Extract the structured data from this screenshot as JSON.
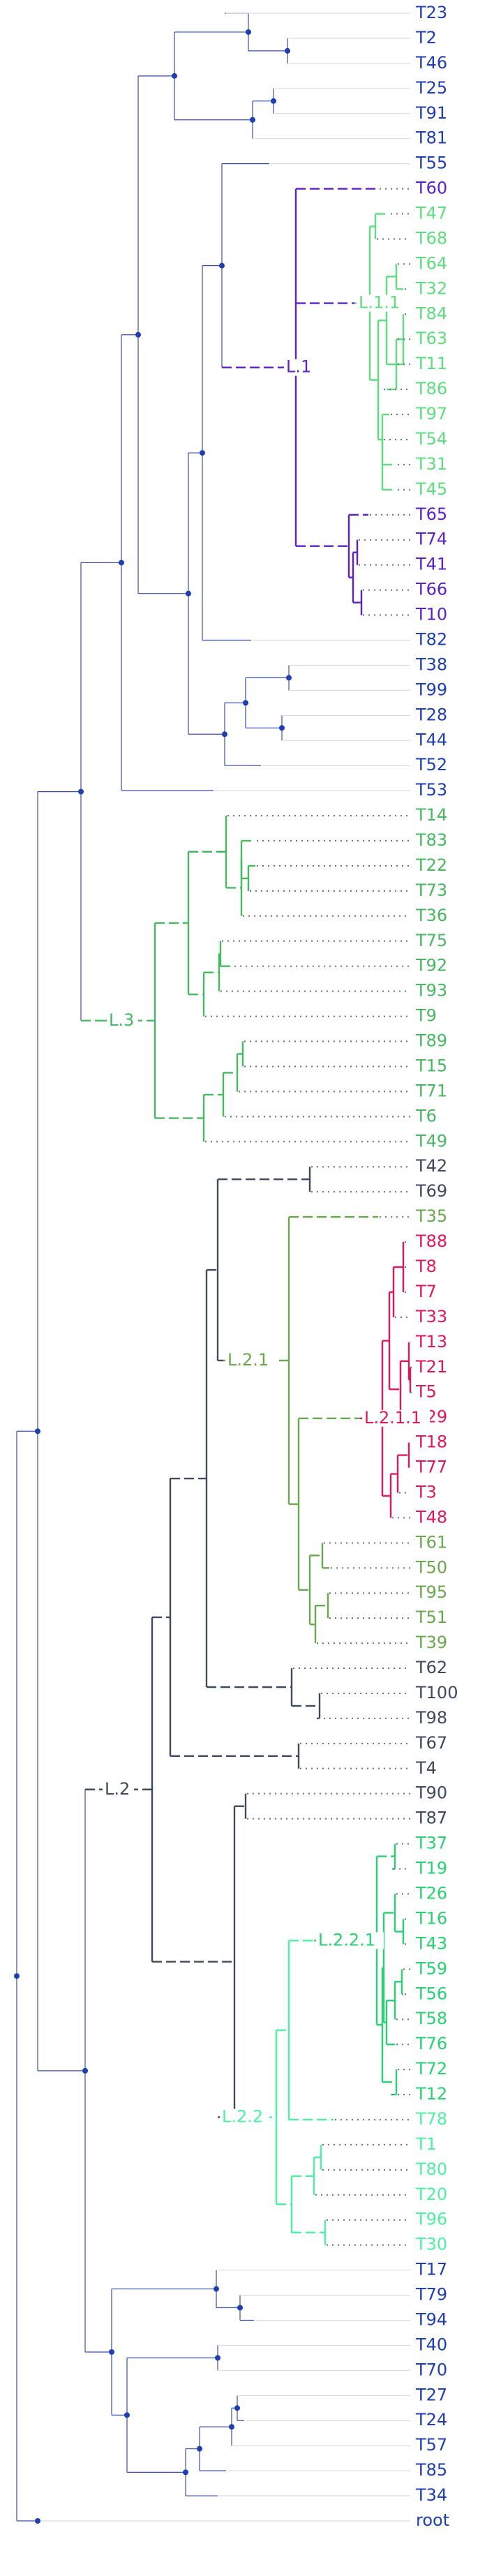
{
  "colors": {
    "default": "#3a4da8",
    "node": "#1f3fb0",
    "label_default": "#1f3fb0",
    "L.1": "#5a22c8",
    "L.1.1": "#5edd7e",
    "L.3": "#47b860",
    "L.2": "#3f4a5c",
    "L.2.1": "#6aa84f",
    "L.2.1.1": "#e0175a",
    "L.2.2": "#4ef0a0",
    "L.2.2.1": "#28d070"
  },
  "tree": {
    "leaves": [
      {
        "name": "T23",
        "group": "default"
      },
      {
        "name": "T2",
        "group": "default"
      },
      {
        "name": "T46",
        "group": "default"
      },
      {
        "name": "T25",
        "group": "default"
      },
      {
        "name": "T91",
        "group": "default"
      },
      {
        "name": "T81",
        "group": "default"
      },
      {
        "name": "T55",
        "group": "default"
      },
      {
        "name": "T60",
        "group": "L.1"
      },
      {
        "name": "T47",
        "group": "L.1.1"
      },
      {
        "name": "T68",
        "group": "L.1.1"
      },
      {
        "name": "T64",
        "group": "L.1.1"
      },
      {
        "name": "T32",
        "group": "L.1.1"
      },
      {
        "name": "T84",
        "group": "L.1.1"
      },
      {
        "name": "T63",
        "group": "L.1.1"
      },
      {
        "name": "T11",
        "group": "L.1.1"
      },
      {
        "name": "T86",
        "group": "L.1.1"
      },
      {
        "name": "T97",
        "group": "L.1.1"
      },
      {
        "name": "T54",
        "group": "L.1.1"
      },
      {
        "name": "T31",
        "group": "L.1.1"
      },
      {
        "name": "T45",
        "group": "L.1.1"
      },
      {
        "name": "T65",
        "group": "L.1"
      },
      {
        "name": "T74",
        "group": "L.1"
      },
      {
        "name": "T41",
        "group": "L.1"
      },
      {
        "name": "T66",
        "group": "L.1"
      },
      {
        "name": "T10",
        "group": "L.1"
      },
      {
        "name": "T82",
        "group": "default"
      },
      {
        "name": "T38",
        "group": "default"
      },
      {
        "name": "T99",
        "group": "default"
      },
      {
        "name": "T28",
        "group": "default"
      },
      {
        "name": "T44",
        "group": "default"
      },
      {
        "name": "T52",
        "group": "default"
      },
      {
        "name": "T53",
        "group": "default"
      },
      {
        "name": "T14",
        "group": "L.3"
      },
      {
        "name": "T83",
        "group": "L.3"
      },
      {
        "name": "T22",
        "group": "L.3"
      },
      {
        "name": "T73",
        "group": "L.3"
      },
      {
        "name": "T36",
        "group": "L.3"
      },
      {
        "name": "T75",
        "group": "L.3"
      },
      {
        "name": "T92",
        "group": "L.3"
      },
      {
        "name": "T93",
        "group": "L.3"
      },
      {
        "name": "T9",
        "group": "L.3"
      },
      {
        "name": "T89",
        "group": "L.3"
      },
      {
        "name": "T15",
        "group": "L.3"
      },
      {
        "name": "T71",
        "group": "L.3"
      },
      {
        "name": "T6",
        "group": "L.3"
      },
      {
        "name": "T49",
        "group": "L.3"
      },
      {
        "name": "T42",
        "group": "L.2"
      },
      {
        "name": "T69",
        "group": "L.2"
      },
      {
        "name": "T35",
        "group": "L.2.1"
      },
      {
        "name": "T88",
        "group": "L.2.1.1"
      },
      {
        "name": "T8",
        "group": "L.2.1.1"
      },
      {
        "name": "T7",
        "group": "L.2.1.1"
      },
      {
        "name": "T33",
        "group": "L.2.1.1"
      },
      {
        "name": "T13",
        "group": "L.2.1.1"
      },
      {
        "name": "T21",
        "group": "L.2.1.1"
      },
      {
        "name": "T5",
        "group": "L.2.1.1"
      },
      {
        "name": "T29",
        "group": "L.2.1.1"
      },
      {
        "name": "T18",
        "group": "L.2.1.1"
      },
      {
        "name": "T77",
        "group": "L.2.1.1"
      },
      {
        "name": "T3",
        "group": "L.2.1.1"
      },
      {
        "name": "T48",
        "group": "L.2.1.1"
      },
      {
        "name": "T61",
        "group": "L.2.1"
      },
      {
        "name": "T50",
        "group": "L.2.1"
      },
      {
        "name": "T95",
        "group": "L.2.1"
      },
      {
        "name": "T51",
        "group": "L.2.1"
      },
      {
        "name": "T39",
        "group": "L.2.1"
      },
      {
        "name": "T62",
        "group": "L.2"
      },
      {
        "name": "T100",
        "group": "L.2"
      },
      {
        "name": "T98",
        "group": "L.2"
      },
      {
        "name": "T67",
        "group": "L.2"
      },
      {
        "name": "T4",
        "group": "L.2"
      },
      {
        "name": "T90",
        "group": "L.2"
      },
      {
        "name": "T87",
        "group": "L.2"
      },
      {
        "name": "T37",
        "group": "L.2.2.1"
      },
      {
        "name": "T19",
        "group": "L.2.2.1"
      },
      {
        "name": "T26",
        "group": "L.2.2.1"
      },
      {
        "name": "T16",
        "group": "L.2.2.1"
      },
      {
        "name": "T43",
        "group": "L.2.2.1"
      },
      {
        "name": "T59",
        "group": "L.2.2.1"
      },
      {
        "name": "T56",
        "group": "L.2.2.1"
      },
      {
        "name": "T58",
        "group": "L.2.2.1"
      },
      {
        "name": "T76",
        "group": "L.2.2.1"
      },
      {
        "name": "T72",
        "group": "L.2.2.1"
      },
      {
        "name": "T12",
        "group": "L.2.2.1"
      },
      {
        "name": "T78",
        "group": "L.2.2"
      },
      {
        "name": "T1",
        "group": "L.2.2"
      },
      {
        "name": "T80",
        "group": "L.2.2"
      },
      {
        "name": "T20",
        "group": "L.2.2"
      },
      {
        "name": "T96",
        "group": "L.2.2"
      },
      {
        "name": "T30",
        "group": "L.2.2"
      },
      {
        "name": "T17",
        "group": "default"
      },
      {
        "name": "T79",
        "group": "default"
      },
      {
        "name": "T94",
        "group": "default"
      },
      {
        "name": "T40",
        "group": "default"
      },
      {
        "name": "T70",
        "group": "default"
      },
      {
        "name": "T27",
        "group": "default"
      },
      {
        "name": "T24",
        "group": "default"
      },
      {
        "name": "T57",
        "group": "default"
      },
      {
        "name": "T85",
        "group": "default"
      },
      {
        "name": "T34",
        "group": "default"
      },
      {
        "name": "root",
        "group": "default"
      }
    ],
    "clade_labels": [
      {
        "label": "L.1",
        "group": "L.1"
      },
      {
        "label": "L.1.1",
        "group": "L.1.1"
      },
      {
        "label": "L.3",
        "group": "L.3"
      },
      {
        "label": "L.2",
        "group": "L.2"
      },
      {
        "label": "L.2.1",
        "group": "L.2.1"
      },
      {
        "label": "L.2.1.1",
        "group": "L.2.1.1"
      },
      {
        "label": "L.2.2",
        "group": "L.2.2"
      },
      {
        "label": "L.2.2.1",
        "group": "L.2.2.1"
      }
    ]
  }
}
